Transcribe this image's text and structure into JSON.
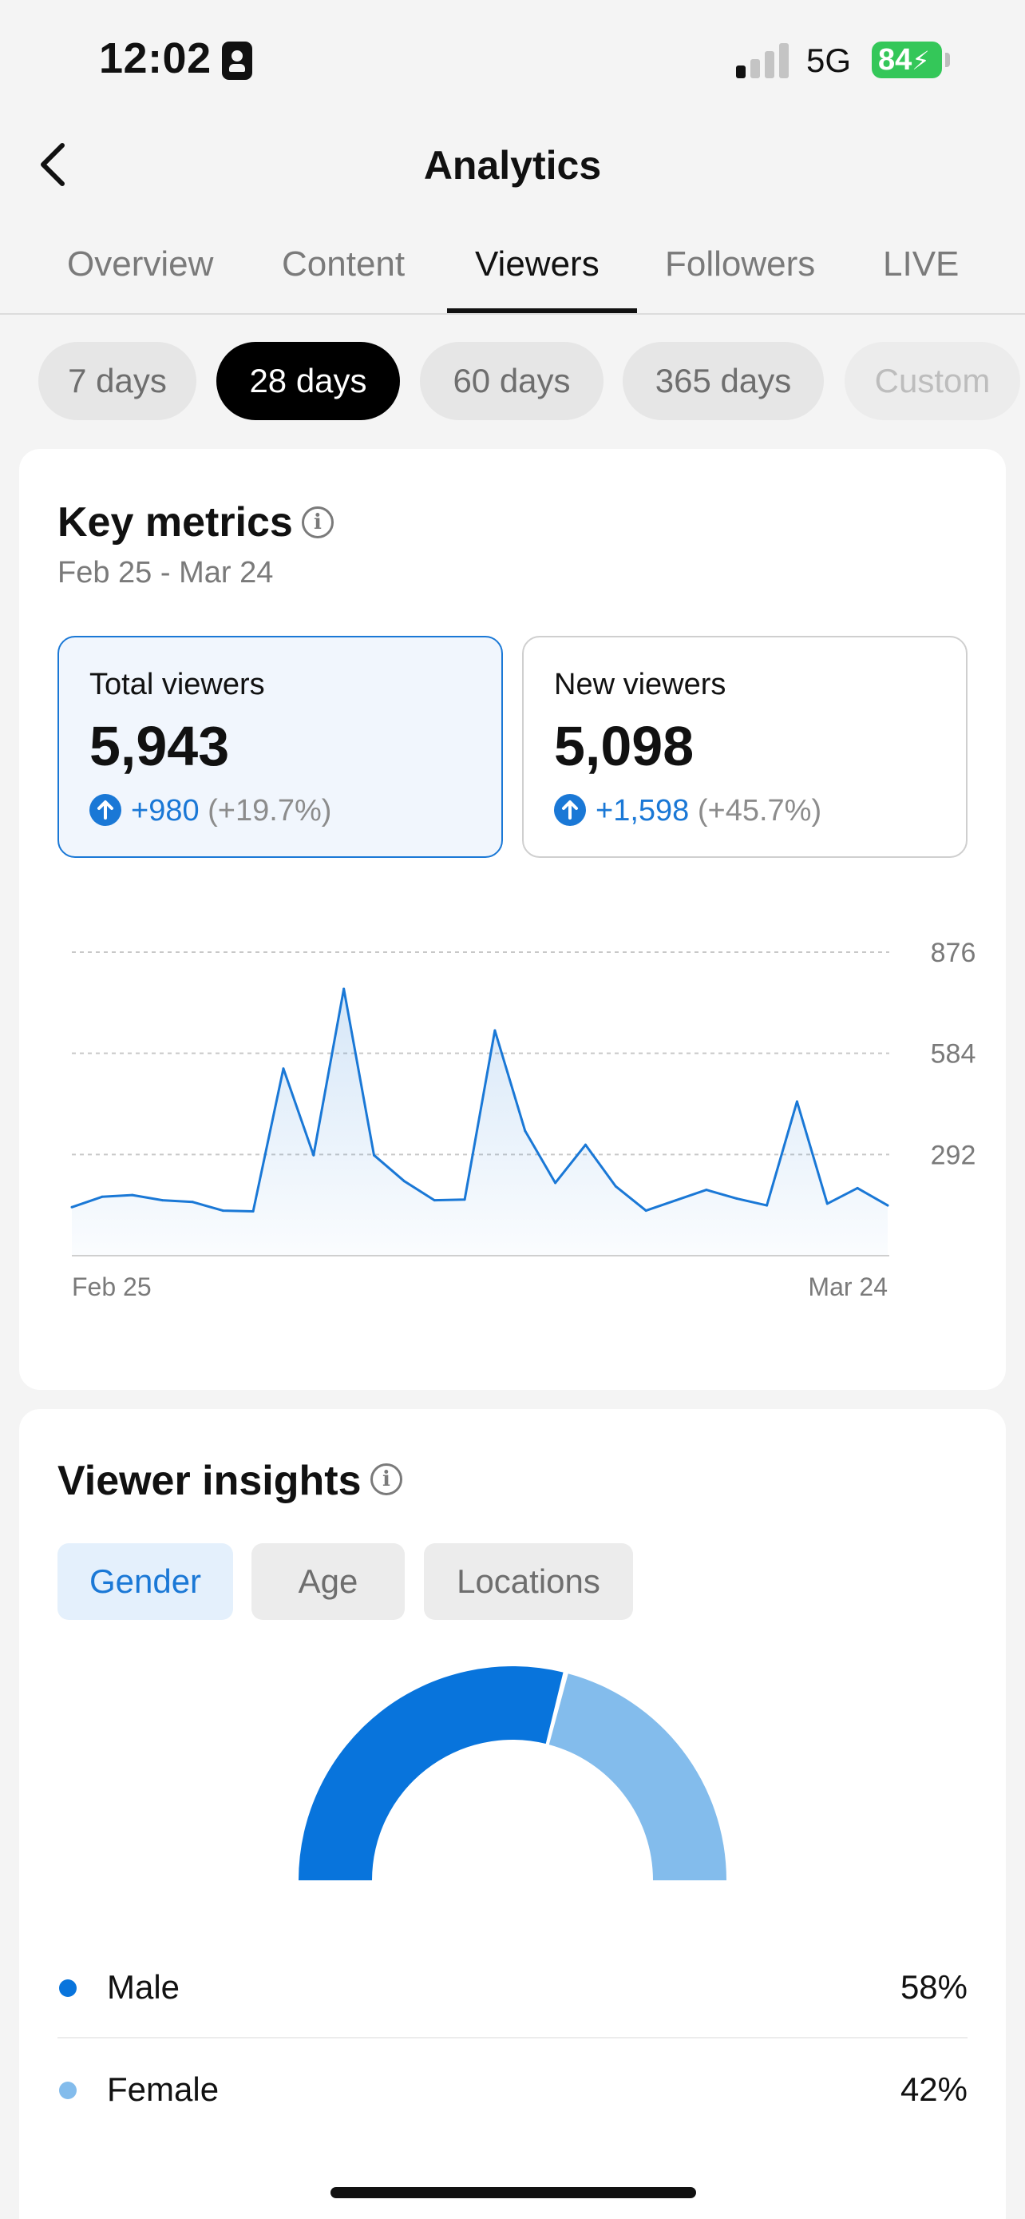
{
  "status_bar": {
    "time": "12:02",
    "network": "5G",
    "battery": "84",
    "signal_bars_active": 1,
    "signal_bars_total": 4
  },
  "header": {
    "title": "Analytics",
    "back_icon": "chevron-left-icon"
  },
  "tabs": [
    {
      "label": "Overview",
      "active": false
    },
    {
      "label": "Content",
      "active": false
    },
    {
      "label": "Viewers",
      "active": true
    },
    {
      "label": "Followers",
      "active": false
    },
    {
      "label": "LIVE",
      "active": false
    }
  ],
  "date_pills": [
    {
      "label": "7 days",
      "active": false
    },
    {
      "label": "28 days",
      "active": true
    },
    {
      "label": "60 days",
      "active": false
    },
    {
      "label": "365 days",
      "active": false
    },
    {
      "label": "Custom",
      "active": false
    }
  ],
  "key_metrics": {
    "title": "Key metrics",
    "date_range": "Feb 25 - Mar 24",
    "cards": [
      {
        "label": "Total viewers",
        "value": "5,943",
        "change": "+980",
        "change_pct": "(+19.7%)",
        "selected": true
      },
      {
        "label": "New viewers",
        "value": "5,098",
        "change": "+1,598",
        "change_pct": "(+45.7%)",
        "selected": false
      }
    ]
  },
  "chart_data": {
    "type": "area",
    "title": "",
    "xlabel": "",
    "ylabel": "",
    "x_tick_labels": [
      "Feb 25",
      "Mar 24"
    ],
    "y_ticks": [
      292,
      584,
      876
    ],
    "ylim": [
      0,
      876
    ],
    "grid": true,
    "color": "#1a78d6",
    "series": [
      {
        "values": [
          140,
          170,
          175,
          160,
          155,
          130,
          128,
          540,
          290,
          770,
          290,
          215,
          160,
          162,
          650,
          360,
          210,
          320,
          200,
          130,
          160,
          190,
          165,
          145,
          445,
          150,
          195,
          145
        ]
      }
    ]
  },
  "viewer_insights": {
    "title": "Viewer insights",
    "tabs": [
      {
        "label": "Gender",
        "active": true
      },
      {
        "label": "Age",
        "active": false
      },
      {
        "label": "Locations",
        "active": false
      }
    ],
    "gender": [
      {
        "name": "Male",
        "value": "58%",
        "fraction": 0.58,
        "color": "#0874dc"
      },
      {
        "name": "Female",
        "value": "42%",
        "fraction": 0.42,
        "color": "#83bcec"
      }
    ]
  }
}
